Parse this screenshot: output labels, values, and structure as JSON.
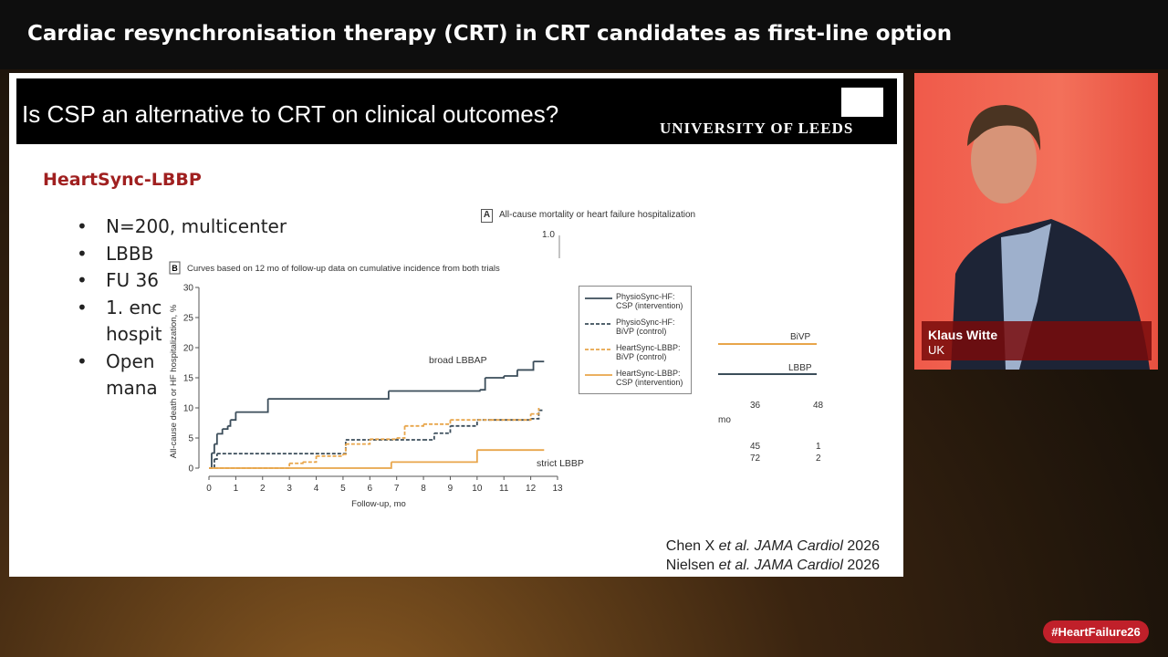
{
  "header": {
    "title": "Cardiac resynchronisation therapy (CRT) in CRT candidates as first-line option"
  },
  "slide": {
    "title": "Is CSP an alternative to CRT on clinical outcomes?",
    "logo": "UNIVERSITY OF LEEDS",
    "heading": "HeartSync-LBBP",
    "bullets": [
      [
        "N=200, multicenter"
      ],
      [
        "LBBB"
      ],
      [
        "FU 36"
      ],
      [
        "1. enc",
        "hospit"
      ],
      [
        "Open",
        "mana"
      ]
    ],
    "panel_a": {
      "label": "A",
      "title": "All-cause mortality or heart failure hospitalization",
      "y_top": "1.0",
      "legend": [
        "BiVP",
        "LBBP"
      ],
      "xticks": [
        "36",
        "48"
      ],
      "x_unit": "mo",
      "risk_rows": [
        [
          "45",
          "1"
        ],
        [
          "72",
          "2"
        ]
      ]
    },
    "citations": [
      {
        "author": "Chen X",
        "etal": "et al.",
        "journal": "JAMA Cardiol",
        "year": "2026"
      },
      {
        "author": "Nielsen",
        "etal": "et al.",
        "journal": "JAMA Cardiol",
        "year": "2026"
      }
    ]
  },
  "chart_data": {
    "type": "line",
    "step": true,
    "label": "B",
    "title": "Curves based on 12 mo of follow-up data on cumulative incidence from both trials",
    "y_label": "All-cause death or HF hospitalization, %",
    "x_label": "Follow-up, mo",
    "xlim": [
      0,
      13
    ],
    "ylim": [
      0,
      30
    ],
    "xticks": [
      0,
      1,
      2,
      3,
      4,
      5,
      6,
      7,
      8,
      9,
      10,
      11,
      12,
      13
    ],
    "yticks": [
      0,
      5,
      10,
      15,
      20,
      25,
      30
    ],
    "annotations": [
      "broad LBBAP",
      "strict LBBP"
    ],
    "series": [
      {
        "name": "PhysioSync-HF: CSP (intervention)",
        "color": "#3b4d5a",
        "dashed": false,
        "x": [
          0,
          0.1,
          0.2,
          0.3,
          0.5,
          0.7,
          0.8,
          1,
          2.2,
          6.7,
          10.1,
          10.3,
          11,
          11.5,
          12.1,
          12.5
        ],
        "values": [
          0,
          2.5,
          4,
          5.7,
          6.5,
          7,
          8,
          9.3,
          11.5,
          12.8,
          13,
          15,
          15.3,
          16.3,
          17.7,
          17.7
        ]
      },
      {
        "name": "PhysioSync-HF: BiVP (control)",
        "color": "#3b4d5a",
        "dashed": true,
        "x": [
          0,
          0.2,
          0.3,
          5,
          5.1,
          8,
          8.4,
          9,
          10,
          12,
          12.3,
          12.5
        ],
        "values": [
          0,
          1.5,
          2.4,
          2.4,
          4.7,
          4.7,
          5.8,
          7,
          8,
          8.2,
          9.6,
          9.6
        ]
      },
      {
        "name": "HeartSync-LBBP: BiVP (control)",
        "color": "#e8a54a",
        "dashed": true,
        "x": [
          0,
          3,
          3.5,
          4,
          5,
          5.1,
          6,
          7,
          7.3,
          8,
          9,
          10.5,
          12,
          12.3
        ],
        "values": [
          0,
          0.8,
          1,
          2,
          2.3,
          4,
          4.8,
          5,
          7,
          7.3,
          8,
          8,
          9,
          10
        ]
      },
      {
        "name": "HeartSync-LBBP: CSP (intervention)",
        "color": "#e8a54a",
        "dashed": false,
        "x": [
          0,
          6.8,
          10,
          12.5
        ],
        "values": [
          0,
          1,
          3,
          3
        ]
      }
    ]
  },
  "speaker": {
    "name": "Klaus Witte",
    "country": "UK"
  },
  "hashtag": "#HeartFailure26"
}
